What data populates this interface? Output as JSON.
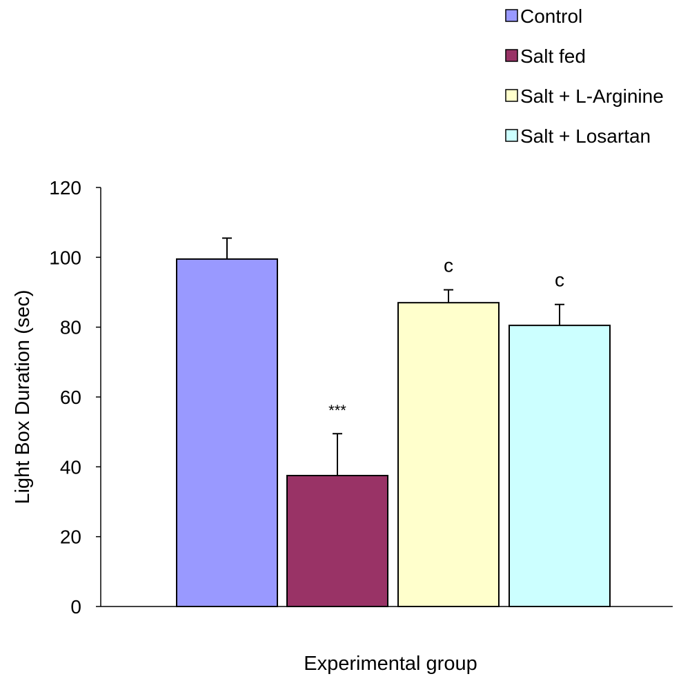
{
  "chart_data": {
    "type": "bar",
    "title": "",
    "xlabel": "Experimental group",
    "ylabel": "Light Box Duration (sec)",
    "ylim": [
      0,
      120
    ],
    "yticks": [
      "0",
      "20",
      "40",
      "60",
      "80",
      "100",
      "120"
    ],
    "grid": false,
    "legend_position": "top-right",
    "series": [
      {
        "name": "Control",
        "value": 99.5,
        "error": 6,
        "color": "#9999FF",
        "annotation": ""
      },
      {
        "name": "Salt fed",
        "value": 37.5,
        "error": 12,
        "color": "#993366",
        "annotation": "***"
      },
      {
        "name": "Salt + L-Arginine",
        "value": 87,
        "error": 3.7,
        "color": "#FFFFCC",
        "annotation": "c"
      },
      {
        "name": "Salt + Losartan",
        "value": 80.5,
        "error": 6,
        "color": "#CCFFFF",
        "annotation": "c"
      }
    ]
  }
}
